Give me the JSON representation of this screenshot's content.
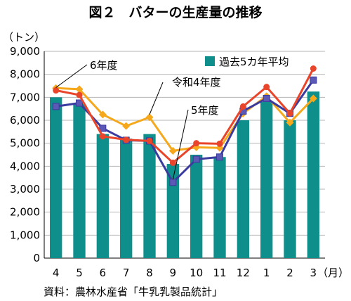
{
  "chart_data": {
    "type": "bar",
    "title": "図２　バターの生産量の推移",
    "y_unit": "（トン）",
    "x_unit": "（月）",
    "source": "資料：農林水産省「牛乳乳製品統計」",
    "categories": [
      "4",
      "5",
      "6",
      "7",
      "8",
      "9",
      "10",
      "11",
      "12",
      "1",
      "2",
      "3"
    ],
    "ylim": [
      0,
      9000
    ],
    "y_ticks": [
      "0",
      "1,000",
      "2,000",
      "3,000",
      "4,000",
      "5,000",
      "6,000",
      "7,000",
      "8,000",
      "9,000"
    ],
    "grid": true,
    "legend_position": "top-right",
    "series": [
      {
        "name": "過去5カ年平均",
        "kind": "bar",
        "color": "#0f8f8b",
        "values": [
          7000,
          6700,
          5400,
          5200,
          5400,
          4100,
          4500,
          4400,
          6000,
          6800,
          6000,
          7250
        ]
      },
      {
        "name": "6年度",
        "kind": "line",
        "color": "#e8452a",
        "marker": "circle",
        "values": [
          7300,
          7100,
          5300,
          5150,
          5100,
          4150,
          5000,
          4980,
          6600,
          7450,
          6300,
          8250
        ]
      },
      {
        "name": "令和4年度",
        "kind": "line",
        "color": "#f5a81c",
        "marker": "diamond",
        "values": [
          7400,
          7350,
          6250,
          5750,
          6130,
          4670,
          4820,
          4800,
          6300,
          7050,
          5900,
          6950
        ]
      },
      {
        "name": "5年度",
        "kind": "line",
        "color": "#3b3a9e",
        "marker": "square",
        "values": [
          6600,
          6750,
          5650,
          5130,
          5100,
          3300,
          4300,
          4400,
          6400,
          6950,
          6300,
          7750
        ]
      }
    ]
  }
}
